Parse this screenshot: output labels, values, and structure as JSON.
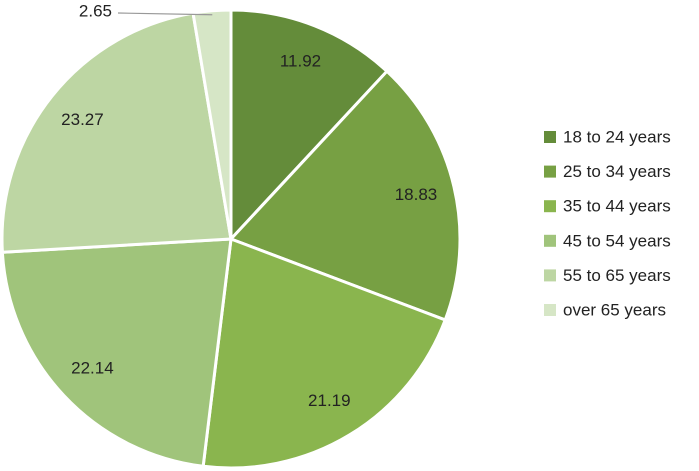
{
  "chart_data": {
    "type": "pie",
    "categories": [
      "18 to 24 years",
      "25 to 34 years",
      "35 to 44 years",
      "45 to 54 years",
      "55 to 65 years",
      "over 65 years"
    ],
    "values": [
      11.92,
      18.83,
      21.19,
      22.14,
      23.27,
      2.65
    ],
    "colors": [
      "#648c3a",
      "#77a043",
      "#8ab54e",
      "#a0c47b",
      "#bdd6a3",
      "#d6e6c6"
    ],
    "legend": "right"
  }
}
